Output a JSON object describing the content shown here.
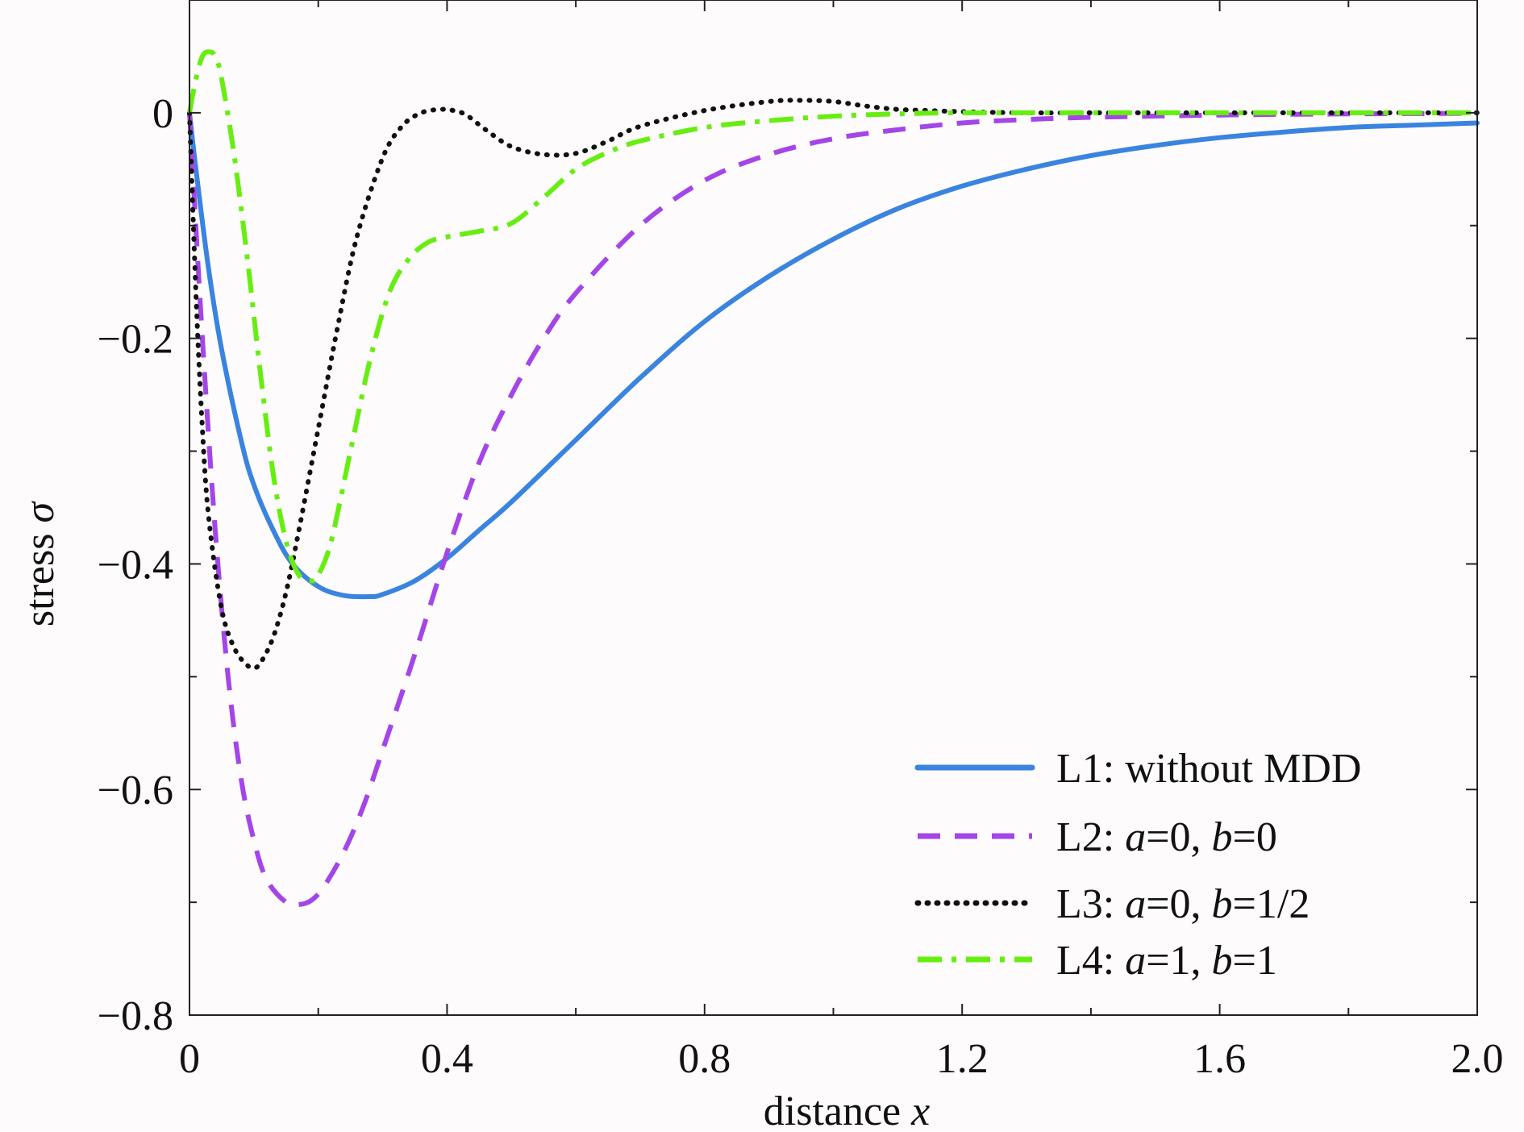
{
  "chart_data": {
    "type": "line",
    "title": "",
    "xlabel": "distance",
    "xlabel_var": "x",
    "ylabel": "stress",
    "ylabel_var": "σ",
    "xlim": [
      0,
      2.0
    ],
    "ylim": [
      -0.8,
      0.1
    ],
    "xticks": [
      0,
      0.4,
      0.8,
      1.2,
      1.6,
      2.0
    ],
    "xtick_labels": [
      "0",
      "0.4",
      "0.8",
      "1.2",
      "1.6",
      "2.0"
    ],
    "xminor": [
      0.2,
      0.6,
      1.0,
      1.4,
      1.8
    ],
    "yticks": [
      0,
      -0.2,
      -0.4,
      -0.6,
      -0.8
    ],
    "ytick_labels": [
      "0",
      "−0.2",
      "−0.4",
      "−0.6",
      "−0.8"
    ],
    "yminor": [
      -0.1,
      -0.3,
      -0.5,
      -0.7
    ],
    "grid": false,
    "legend_position": "bottom-right",
    "series": [
      {
        "name": "L1: without MDD",
        "legend_parts": [
          {
            "t": "L1: without MDD",
            "i": false
          }
        ],
        "color": "#3a84e0",
        "dash": "solid",
        "x": [
          0,
          0.01,
          0.03,
          0.05,
          0.08,
          0.1,
          0.13,
          0.16,
          0.2,
          0.24,
          0.28,
          0.3,
          0.35,
          0.4,
          0.45,
          0.5,
          0.6,
          0.7,
          0.8,
          0.9,
          1.0,
          1.1,
          1.2,
          1.3,
          1.4,
          1.5,
          1.6,
          1.7,
          1.8,
          1.9,
          2.0
        ],
        "y": [
          0,
          -0.05,
          -0.14,
          -0.21,
          -0.29,
          -0.33,
          -0.37,
          -0.4,
          -0.42,
          -0.428,
          -0.429,
          -0.427,
          -0.415,
          -0.395,
          -0.37,
          -0.345,
          -0.29,
          -0.235,
          -0.185,
          -0.145,
          -0.112,
          -0.085,
          -0.065,
          -0.05,
          -0.038,
          -0.029,
          -0.022,
          -0.017,
          -0.013,
          -0.011,
          -0.009
        ]
      },
      {
        "name": "L2: a=0, b=0",
        "legend_parts": [
          {
            "t": "L2: ",
            "i": false
          },
          {
            "t": "a",
            "i": true
          },
          {
            "t": "=0, ",
            "i": false
          },
          {
            "t": "b",
            "i": true
          },
          {
            "t": "=0",
            "i": false
          }
        ],
        "color": "#a445e8",
        "dash": "dashed",
        "x": [
          0,
          0.02,
          0.04,
          0.06,
          0.08,
          0.1,
          0.12,
          0.15,
          0.17,
          0.19,
          0.21,
          0.24,
          0.27,
          0.3,
          0.35,
          0.4,
          0.45,
          0.5,
          0.55,
          0.6,
          0.7,
          0.8,
          0.9,
          1.0,
          1.1,
          1.2,
          1.3,
          1.4,
          1.6,
          1.8,
          2.0
        ],
        "y": [
          0,
          -0.2,
          -0.37,
          -0.5,
          -0.59,
          -0.645,
          -0.68,
          -0.7,
          -0.702,
          -0.698,
          -0.685,
          -0.655,
          -0.615,
          -0.565,
          -0.48,
          -0.39,
          -0.31,
          -0.25,
          -0.2,
          -0.16,
          -0.1,
          -0.06,
          -0.037,
          -0.023,
          -0.015,
          -0.009,
          -0.006,
          -0.004,
          -0.002,
          -0.001,
          -0.0005
        ]
      },
      {
        "name": "L3: a=0, b=1/2",
        "legend_parts": [
          {
            "t": "L3: ",
            "i": false
          },
          {
            "t": "a",
            "i": true
          },
          {
            "t": "=0, ",
            "i": false
          },
          {
            "t": "b",
            "i": true
          },
          {
            "t": "=1/2",
            "i": false
          }
        ],
        "color": "#111111",
        "dash": "dotted",
        "x": [
          0,
          0.01,
          0.02,
          0.03,
          0.05,
          0.07,
          0.09,
          0.1,
          0.11,
          0.13,
          0.15,
          0.17,
          0.2,
          0.23,
          0.26,
          0.3,
          0.33,
          0.36,
          0.39,
          0.41,
          0.43,
          0.46,
          0.5,
          0.55,
          0.6,
          0.65,
          0.7,
          0.8,
          0.9,
          0.95,
          1.0,
          1.05,
          1.1,
          1.15,
          1.2,
          1.3,
          1.4,
          1.6,
          1.8,
          2.0
        ],
        "y": [
          0,
          -0.16,
          -0.28,
          -0.36,
          -0.44,
          -0.475,
          -0.49,
          -0.492,
          -0.488,
          -0.465,
          -0.425,
          -0.37,
          -0.28,
          -0.19,
          -0.11,
          -0.04,
          -0.012,
          0.0,
          0.003,
          0.002,
          -0.002,
          -0.015,
          -0.03,
          -0.037,
          -0.036,
          -0.025,
          -0.012,
          0.002,
          0.01,
          0.011,
          0.01,
          0.006,
          0.003,
          0.002,
          0.001,
          0,
          0,
          0,
          0,
          0
        ]
      },
      {
        "name": "L4: a=1, b=1",
        "legend_parts": [
          {
            "t": "L4: ",
            "i": false
          },
          {
            "t": "a",
            "i": true
          },
          {
            "t": "=1, ",
            "i": false
          },
          {
            "t": "b",
            "i": true
          },
          {
            "t": "=1",
            "i": false
          }
        ],
        "color": "#66ee11",
        "dash": "dashdot",
        "x": [
          0,
          0.01,
          0.02,
          0.03,
          0.04,
          0.05,
          0.07,
          0.09,
          0.11,
          0.13,
          0.15,
          0.17,
          0.19,
          0.2,
          0.22,
          0.25,
          0.28,
          0.31,
          0.34,
          0.37,
          0.4,
          0.45,
          0.5,
          0.55,
          0.6,
          0.65,
          0.7,
          0.8,
          0.9,
          1.0,
          1.1,
          1.2,
          1.4,
          1.6,
          1.8,
          2.0
        ],
        "y": [
          0,
          0.03,
          0.05,
          0.054,
          0.05,
          0.03,
          -0.04,
          -0.13,
          -0.23,
          -0.32,
          -0.38,
          -0.41,
          -0.415,
          -0.41,
          -0.38,
          -0.3,
          -0.22,
          -0.16,
          -0.13,
          -0.115,
          -0.11,
          -0.105,
          -0.098,
          -0.075,
          -0.05,
          -0.035,
          -0.025,
          -0.013,
          -0.007,
          -0.003,
          -0.001,
          0,
          0,
          0,
          0,
          0
        ]
      }
    ]
  }
}
